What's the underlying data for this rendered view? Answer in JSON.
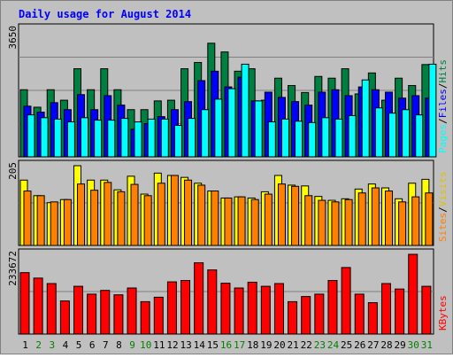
{
  "chart_data": [
    {
      "type": "bar",
      "title": "Daily usage for August 2014",
      "ylabel_max": "3650",
      "categories": [
        "1",
        "2",
        "3",
        "4",
        "5",
        "6",
        "7",
        "8",
        "9",
        "10",
        "11",
        "12",
        "13",
        "14",
        "15",
        "16",
        "17",
        "18",
        "19",
        "20",
        "21",
        "22",
        "23",
        "24",
        "25",
        "26",
        "27",
        "28",
        "29",
        "30",
        "31"
      ],
      "series": [
        {
          "name": "Hits",
          "color": "#008040",
          "values": [
            1920,
            1420,
            1920,
            1620,
            2520,
            1920,
            2520,
            1920,
            1350,
            1350,
            1600,
            1620,
            2520,
            2700,
            3250,
            3000,
            2450,
            2520,
            1620,
            2250,
            2040,
            1840,
            2300,
            2250,
            2520,
            1800,
            2400,
            1620,
            2250,
            2040,
            2640
          ]
        },
        {
          "name": "Files",
          "color": "#0000ff",
          "values": [
            1450,
            1280,
            1550,
            1350,
            1780,
            1350,
            1750,
            1480,
            790,
            950,
            1150,
            1350,
            1580,
            2180,
            2450,
            2000,
            2280,
            1600,
            1850,
            1700,
            1580,
            1480,
            1850,
            1920,
            1750,
            2000,
            1920,
            1850,
            1680,
            1750,
            1680
          ]
        },
        {
          "name": "Pages",
          "color": "#00ffff",
          "values": [
            1200,
            1120,
            1080,
            1000,
            1120,
            1050,
            1050,
            1100,
            1000,
            1080,
            1080,
            900,
            1100,
            1350,
            1650,
            1950,
            2650,
            1600,
            1000,
            1080,
            1020,
            980,
            1120,
            1080,
            1180,
            2200,
            1400,
            1250,
            1350,
            1200,
            2650
          ]
        }
      ]
    },
    {
      "type": "bar",
      "ylabel_max": "205",
      "categories": [
        "1",
        "2",
        "3",
        "4",
        "5",
        "6",
        "7",
        "8",
        "9",
        "10",
        "11",
        "12",
        "13",
        "14",
        "15",
        "16",
        "17",
        "18",
        "19",
        "20",
        "21",
        "22",
        "23",
        "24",
        "25",
        "26",
        "27",
        "28",
        "29",
        "30",
        "31"
      ],
      "series": [
        {
          "name": "Visits",
          "color": "#ffff00",
          "values": [
            168,
            128,
            110,
            118,
            205,
            168,
            168,
            143,
            178,
            132,
            186,
            180,
            175,
            160,
            140,
            122,
            125,
            122,
            138,
            180,
            155,
            153,
            126,
            116,
            120,
            145,
            158,
            148,
            120,
            160,
            170
          ]
        },
        {
          "name": "Sites",
          "color": "#ff8000",
          "values": [
            140,
            128,
            112,
            118,
            158,
            142,
            162,
            138,
            157,
            128,
            160,
            180,
            168,
            155,
            140,
            122,
            125,
            118,
            132,
            158,
            152,
            128,
            116,
            112,
            118,
            135,
            148,
            140,
            112,
            125,
            135
          ]
        }
      ]
    },
    {
      "type": "bar",
      "ylabel_max": "233672",
      "categories": [
        "1",
        "2",
        "3",
        "4",
        "5",
        "6",
        "7",
        "8",
        "9",
        "10",
        "11",
        "12",
        "13",
        "14",
        "15",
        "16",
        "17",
        "18",
        "19",
        "20",
        "21",
        "22",
        "23",
        "24",
        "25",
        "26",
        "27",
        "28",
        "29",
        "30",
        "31"
      ],
      "series": [
        {
          "name": "KBytes",
          "color": "#ff0000",
          "values": [
            180000,
            164000,
            148000,
            97000,
            140000,
            117000,
            128000,
            115000,
            135000,
            95000,
            108000,
            153000,
            157000,
            209000,
            188000,
            149000,
            135000,
            152000,
            140000,
            148000,
            95000,
            110000,
            117000,
            157000,
            195000,
            117000,
            92000,
            148000,
            132000,
            233672,
            140000
          ]
        }
      ]
    }
  ],
  "weekend_days": [
    2,
    3,
    9,
    10,
    16,
    17,
    23,
    24,
    30,
    31
  ],
  "colors": {
    "weekday_label": "#000000",
    "weekend_label": "#008000",
    "background": "#c0c0c0",
    "title": "#0000ff"
  }
}
